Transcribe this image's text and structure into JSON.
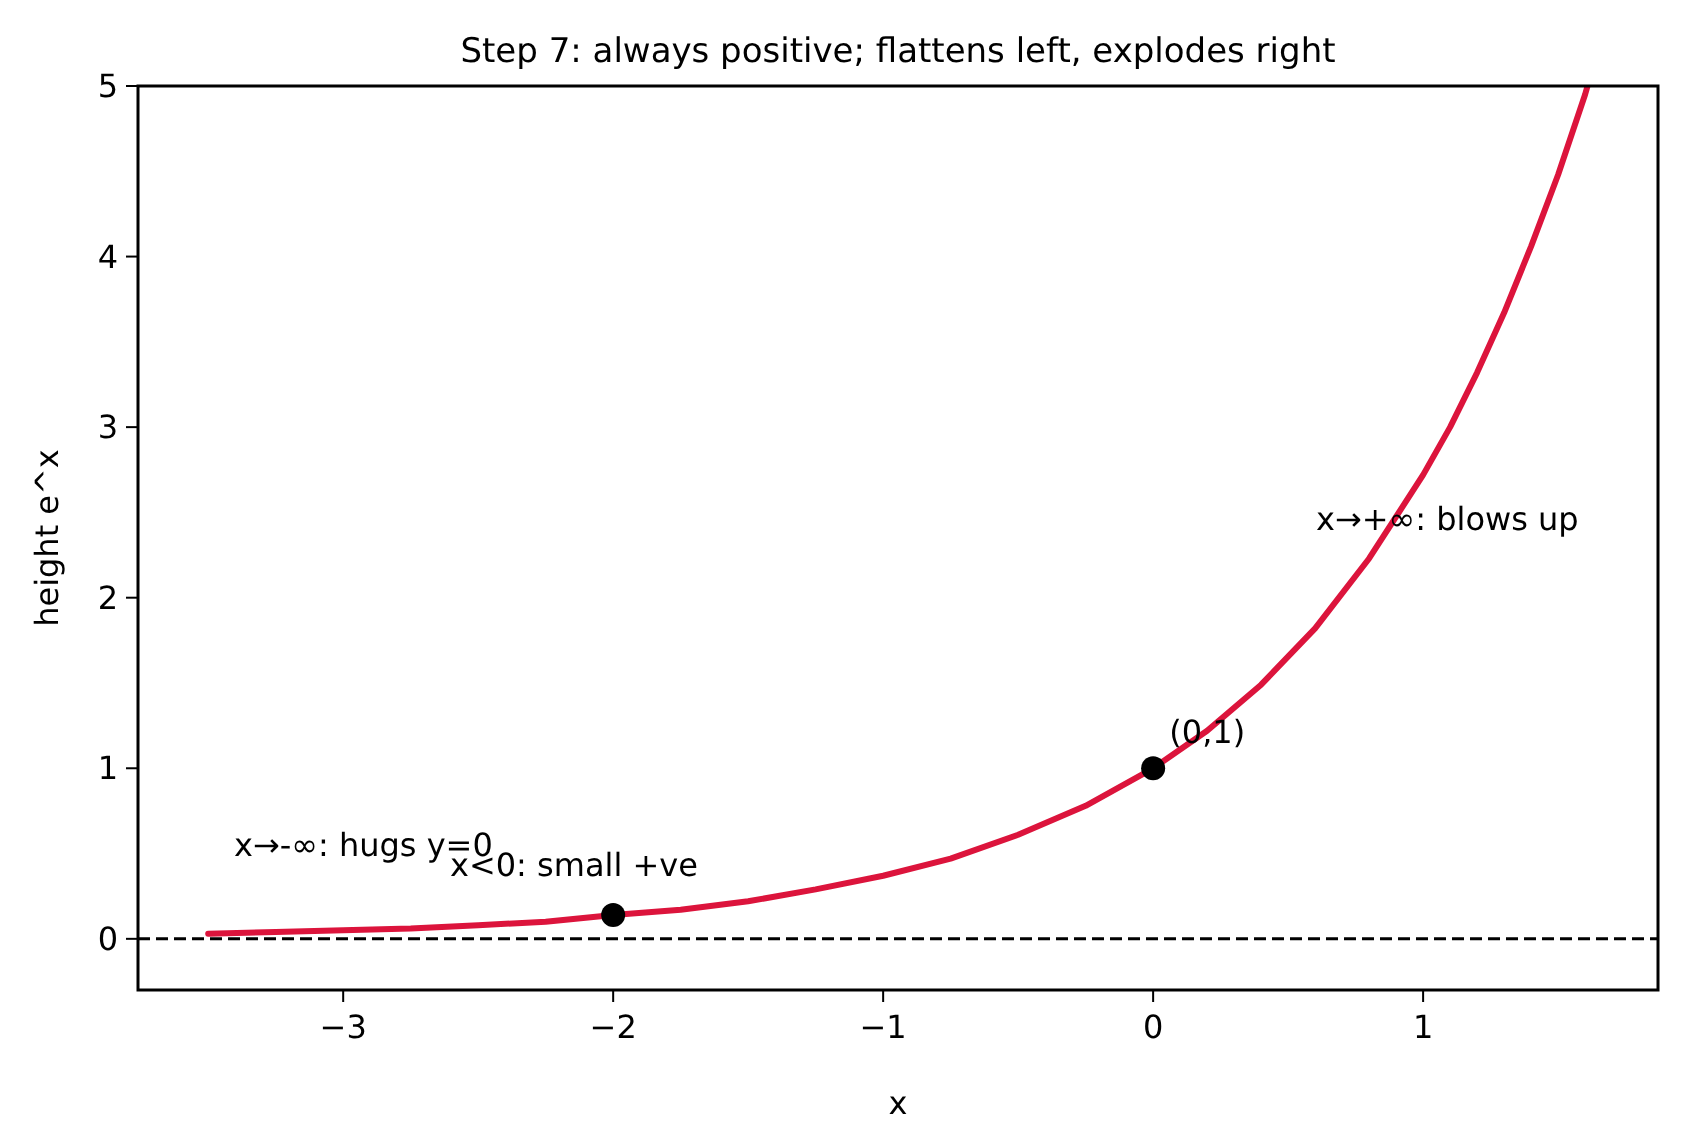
{
  "chart_data": {
    "type": "line",
    "title": "Step 7: always positive; flattens left, explodes right",
    "xlabel": "x",
    "ylabel": "height e^x",
    "xlim": [
      -3.76,
      1.87
    ],
    "ylim": [
      -0.3,
      5
    ],
    "xticks": [
      {
        "value": -3,
        "label": "−3"
      },
      {
        "value": -2,
        "label": "−2"
      },
      {
        "value": -1,
        "label": "−1"
      },
      0,
      1
    ],
    "yticks": [
      0,
      1,
      2,
      3,
      4,
      5
    ],
    "series": [
      {
        "color": "#dc143c",
        "line_style": "solid",
        "marker": "none",
        "x": [
          -3.5,
          -3.25,
          -3,
          -2.75,
          -2.5,
          -2.25,
          -2,
          -1.75,
          -1.5,
          -1.25,
          -1,
          -0.75,
          -0.5,
          -0.25,
          0,
          0.2,
          0.4,
          0.6,
          0.8,
          1,
          1.1,
          1.2,
          1.3,
          1.4,
          1.5,
          1.6,
          1.609
        ],
        "values": [
          0.03,
          0.04,
          0.05,
          0.06,
          0.08,
          0.1,
          0.14,
          0.17,
          0.22,
          0.29,
          0.37,
          0.47,
          0.61,
          0.78,
          1,
          1.22,
          1.49,
          1.82,
          2.23,
          2.72,
          3.0,
          3.32,
          3.67,
          4.06,
          4.48,
          4.95,
          5
        ]
      },
      {
        "type": "scatter",
        "color": "#000000",
        "marker": "circle",
        "x": [
          -2,
          0
        ],
        "values": [
          0.14,
          1
        ]
      }
    ],
    "ref_lines": [
      {
        "axis": "y",
        "value": 0,
        "color": "#000000",
        "line_style": "dashed"
      }
    ],
    "annotations": [
      {
        "text": "(0,1)",
        "x": 0.06,
        "y": 1.15
      },
      "x<0: small +ve",
      "x→-∞: hugs y=0",
      "x→+∞: blows up"
    ]
  }
}
